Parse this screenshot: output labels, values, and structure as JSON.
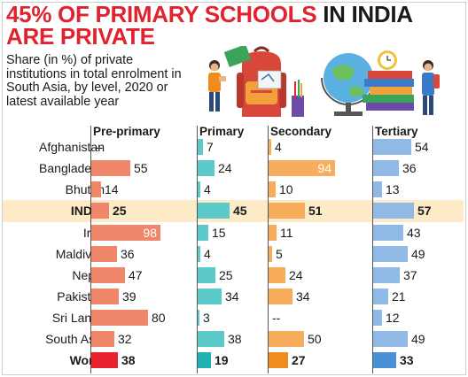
{
  "title_part1": "45% OF PRIMARY SCHOOLS",
  "title_part2": "IN INDIA",
  "title_line2": "ARE PRIVATE",
  "subtitle": "Share (in %) of private institutions in total enrolment in South Asia, by level, 2020 or latest available year",
  "colors": {
    "title_red": "#e0232f",
    "india_highlight": "#fcebc6",
    "pre_primary": "#f1876a",
    "primary": "#5ccaca",
    "secondary": "#f7ad5c",
    "tertiary": "#90b9e6",
    "world_pre_primary": "#e8232d",
    "world_primary": "#1fb1b4",
    "world_secondary": "#f08c1e",
    "world_tertiary": "#4a90d6"
  },
  "chart_data": {
    "type": "bar",
    "orientation": "horizontal",
    "grid": false,
    "categories": [
      "Afghanistan",
      "Bangladesh",
      "Bhutan",
      "INDIA",
      "Iran",
      "Maldives",
      "Nepal",
      "Pakistan",
      "Sri Lanka",
      "South Asia",
      "World"
    ],
    "highlighted": [
      "INDIA",
      "World"
    ],
    "series": [
      {
        "name": "Pre-primary",
        "values": [
          null,
          55,
          14,
          25,
          98,
          36,
          47,
          39,
          80,
          32,
          38
        ],
        "labels": [
          "--",
          "55",
          "14",
          "25",
          "98",
          "36",
          "47",
          "39",
          "80",
          "32",
          "38"
        ]
      },
      {
        "name": "Primary",
        "values": [
          7,
          24,
          4,
          45,
          15,
          4,
          25,
          34,
          3,
          38,
          19
        ],
        "labels": [
          "7",
          "24",
          "4",
          "45",
          "15",
          "4",
          "25",
          "34",
          "3",
          "38",
          "19"
        ]
      },
      {
        "name": "Secondary",
        "values": [
          4,
          94,
          10,
          51,
          11,
          5,
          24,
          34,
          null,
          50,
          27
        ],
        "labels": [
          "4",
          "94",
          "10",
          "51",
          "11",
          "5",
          "24",
          "34",
          "--",
          "50",
          "27"
        ]
      },
      {
        "name": "Tertiary",
        "values": [
          54,
          36,
          13,
          57,
          43,
          49,
          37,
          21,
          12,
          49,
          33
        ],
        "labels": [
          "54",
          "36",
          "13",
          "57",
          "43",
          "49",
          "37",
          "21",
          "12",
          "49",
          "33"
        ]
      }
    ],
    "xlim": [
      0,
      100
    ]
  }
}
